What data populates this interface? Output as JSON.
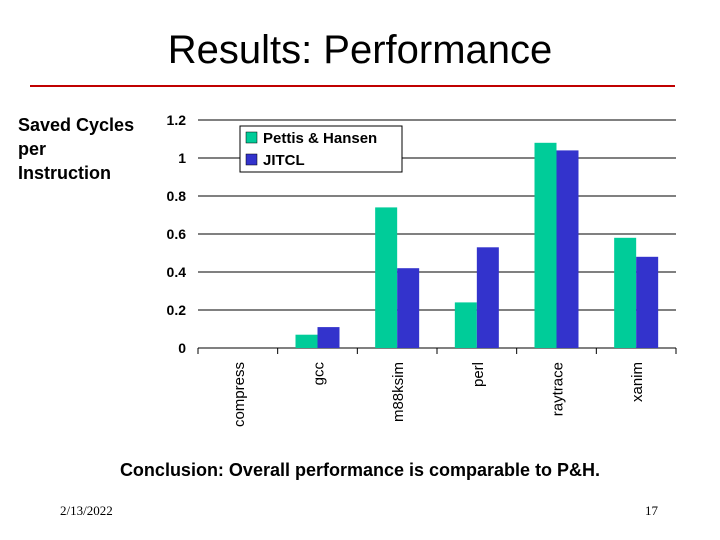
{
  "slide": {
    "title": "Results: Performance",
    "conclusion": "Conclusion: Overall performance is comparable to P&H.",
    "date": "2/13/2022",
    "page": "17"
  },
  "chart_data": {
    "type": "bar",
    "ylabel": "Saved Cycles per Instruction",
    "categories": [
      "compress",
      "gcc",
      "m88ksim",
      "perl",
      "raytrace",
      "xanim"
    ],
    "series": [
      {
        "name": "Pettis & Hansen",
        "values": [
          0,
          0.07,
          0.74,
          0.24,
          1.08,
          0.58
        ],
        "color": "#00cc99"
      },
      {
        "name": "JITCL",
        "values": [
          0,
          0.11,
          0.42,
          0.53,
          1.04,
          0.48
        ],
        "color": "#3333cc"
      }
    ],
    "ylim": [
      0,
      1.2
    ],
    "yticks": [
      "0",
      "0.2",
      "0.4",
      "0.6",
      "0.8",
      "1",
      "1.2"
    ],
    "grid": true,
    "legend": "top-left"
  }
}
